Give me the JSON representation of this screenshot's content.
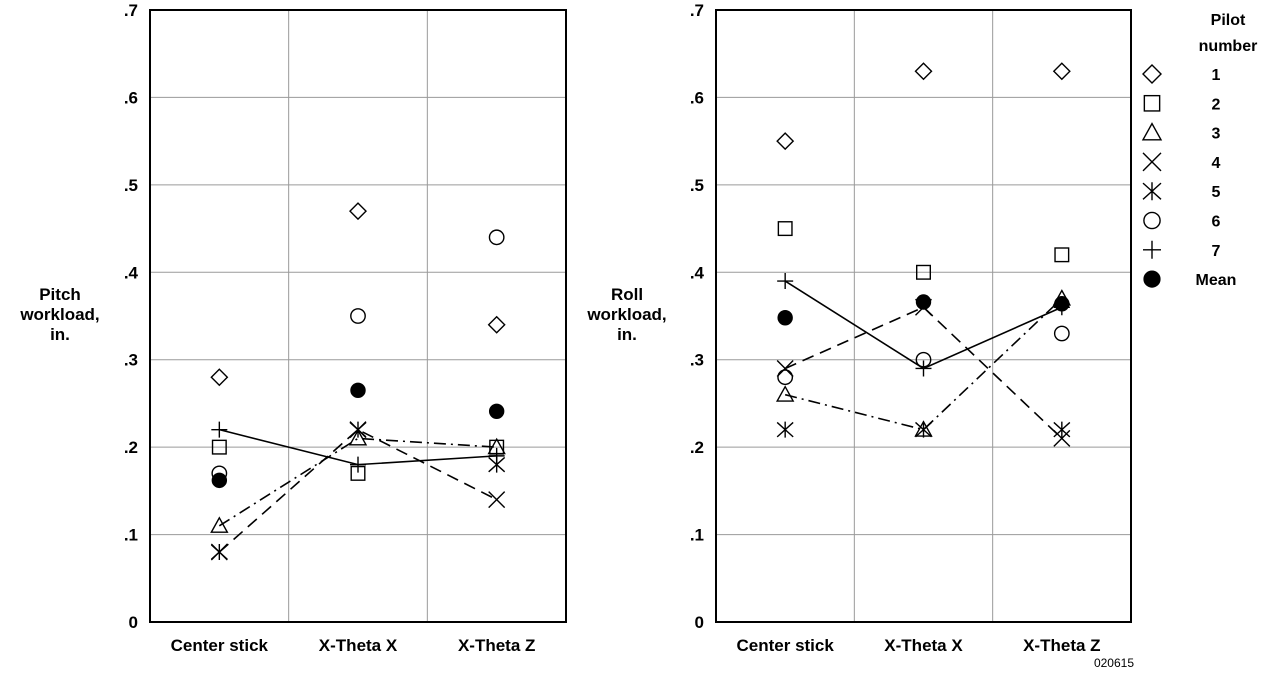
{
  "figure_id": "020615",
  "legend": {
    "title_line1": "Pilot",
    "title_line2": "number",
    "items": [
      {
        "label": "1",
        "marker": "diamond"
      },
      {
        "label": "2",
        "marker": "square"
      },
      {
        "label": "3",
        "marker": "triangle"
      },
      {
        "label": "4",
        "marker": "x"
      },
      {
        "label": "5",
        "marker": "asterisk"
      },
      {
        "label": "6",
        "marker": "circle"
      },
      {
        "label": "7",
        "marker": "plus"
      },
      {
        "label": "Mean",
        "marker": "filled-circle"
      }
    ]
  },
  "chart_data": [
    {
      "type": "scatter",
      "ylabel_lines": [
        "Pitch",
        "workload,",
        "in."
      ],
      "categories": [
        "Center stick",
        "X-Theta X",
        "X-Theta Z"
      ],
      "ylim": [
        0,
        0.7
      ],
      "yticks": [
        {
          "value": 0,
          "label": "0"
        },
        {
          "value": 0.1,
          "label": ".1"
        },
        {
          "value": 0.2,
          "label": ".2"
        },
        {
          "value": 0.3,
          "label": ".3"
        },
        {
          "value": 0.4,
          "label": ".4"
        },
        {
          "value": 0.5,
          "label": ".5"
        },
        {
          "value": 0.6,
          "label": ".6"
        },
        {
          "value": 0.7,
          "label": ".7"
        }
      ],
      "grid": true,
      "series": [
        {
          "name": "1",
          "marker": "diamond",
          "values": [
            0.28,
            0.47,
            0.34
          ],
          "line": "none"
        },
        {
          "name": "2",
          "marker": "square",
          "values": [
            0.2,
            0.17,
            0.2
          ],
          "line": "none"
        },
        {
          "name": "3",
          "marker": "triangle",
          "values": [
            0.11,
            0.21,
            0.2
          ],
          "line": "dash-dot"
        },
        {
          "name": "4",
          "marker": "x",
          "values": [
            0.08,
            0.22,
            0.14
          ],
          "line": "dashed"
        },
        {
          "name": "5",
          "marker": "asterisk",
          "values": [
            0.08,
            0.22,
            0.18
          ],
          "line": "none"
        },
        {
          "name": "6",
          "marker": "circle",
          "values": [
            0.17,
            0.35,
            0.44
          ],
          "line": "none"
        },
        {
          "name": "7",
          "marker": "plus",
          "values": [
            0.22,
            0.18,
            0.19
          ],
          "line": "solid"
        },
        {
          "name": "Mean",
          "marker": "filled-circle",
          "values": [
            0.162,
            0.265,
            0.241
          ],
          "line": "none"
        }
      ]
    },
    {
      "type": "scatter",
      "ylabel_lines": [
        "Roll",
        "workload,",
        "in."
      ],
      "categories": [
        "Center stick",
        "X-Theta X",
        "X-Theta Z"
      ],
      "ylim": [
        0,
        0.7
      ],
      "yticks": [
        {
          "value": 0,
          "label": "0"
        },
        {
          "value": 0.1,
          "label": ".1"
        },
        {
          "value": 0.2,
          "label": ".2"
        },
        {
          "value": 0.3,
          "label": ".3"
        },
        {
          "value": 0.4,
          "label": ".4"
        },
        {
          "value": 0.5,
          "label": ".5"
        },
        {
          "value": 0.6,
          "label": ".6"
        },
        {
          "value": 0.7,
          "label": ".7"
        }
      ],
      "grid": true,
      "series": [
        {
          "name": "1",
          "marker": "diamond",
          "values": [
            0.55,
            0.63,
            0.63
          ],
          "line": "none"
        },
        {
          "name": "2",
          "marker": "square",
          "values": [
            0.45,
            0.4,
            0.42
          ],
          "line": "none"
        },
        {
          "name": "3",
          "marker": "triangle",
          "values": [
            0.26,
            0.22,
            0.37
          ],
          "line": "dash-dot"
        },
        {
          "name": "4",
          "marker": "x",
          "values": [
            0.29,
            0.36,
            0.21
          ],
          "line": "dashed"
        },
        {
          "name": "5",
          "marker": "asterisk",
          "values": [
            0.22,
            0.22,
            0.22
          ],
          "line": "none"
        },
        {
          "name": "6",
          "marker": "circle",
          "values": [
            0.28,
            0.3,
            0.33
          ],
          "line": "none"
        },
        {
          "name": "7",
          "marker": "plus",
          "values": [
            0.39,
            0.29,
            0.36
          ],
          "line": "solid"
        },
        {
          "name": "Mean",
          "marker": "filled-circle",
          "values": [
            0.348,
            0.366,
            0.364
          ],
          "line": "none"
        }
      ]
    }
  ]
}
